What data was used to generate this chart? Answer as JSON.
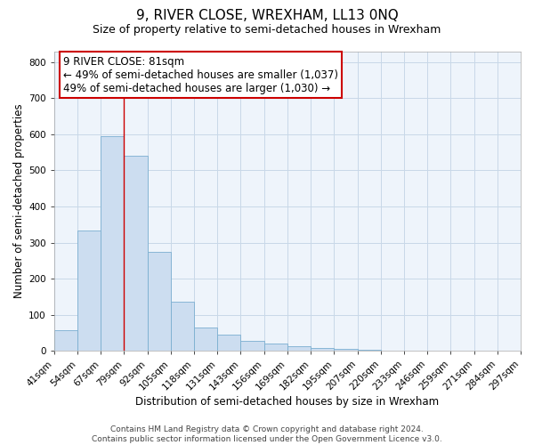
{
  "title": "9, RIVER CLOSE, WREXHAM, LL13 0NQ",
  "subtitle": "Size of property relative to semi-detached houses in Wrexham",
  "xlabel": "Distribution of semi-detached houses by size in Wrexham",
  "ylabel": "Number of semi-detached properties",
  "bar_values": [
    57,
    333,
    595,
    540,
    275,
    137,
    65,
    45,
    28,
    22,
    14,
    8,
    5,
    3,
    2,
    1,
    0,
    1,
    0,
    0
  ],
  "bin_labels": [
    "41sqm",
    "54sqm",
    "67sqm",
    "79sqm",
    "92sqm",
    "105sqm",
    "118sqm",
    "131sqm",
    "143sqm",
    "156sqm",
    "169sqm",
    "182sqm",
    "195sqm",
    "207sqm",
    "220sqm",
    "233sqm",
    "246sqm",
    "259sqm",
    "271sqm",
    "284sqm",
    "297sqm"
  ],
  "bar_color": "#ccddf0",
  "bar_edge_color": "#7aaed0",
  "annotation_title": "9 RIVER CLOSE: 81sqm",
  "annotation_line1": "← 49% of semi-detached houses are smaller (1,037)",
  "annotation_line2": "49% of semi-detached houses are larger (1,030) →",
  "annotation_box_color": "#ffffff",
  "annotation_box_edge_color": "#cc0000",
  "marker_line_color": "#cc0000",
  "ylim": [
    0,
    830
  ],
  "footer_line1": "Contains HM Land Registry data © Crown copyright and database right 2024.",
  "footer_line2": "Contains public sector information licensed under the Open Government Licence v3.0.",
  "background_color": "#ffffff",
  "plot_bg_color": "#eef4fb",
  "grid_color": "#c8d8e8",
  "title_fontsize": 11,
  "subtitle_fontsize": 9,
  "axis_label_fontsize": 8.5,
  "tick_fontsize": 7.5,
  "annotation_fontsize": 8.5,
  "footer_fontsize": 6.5
}
